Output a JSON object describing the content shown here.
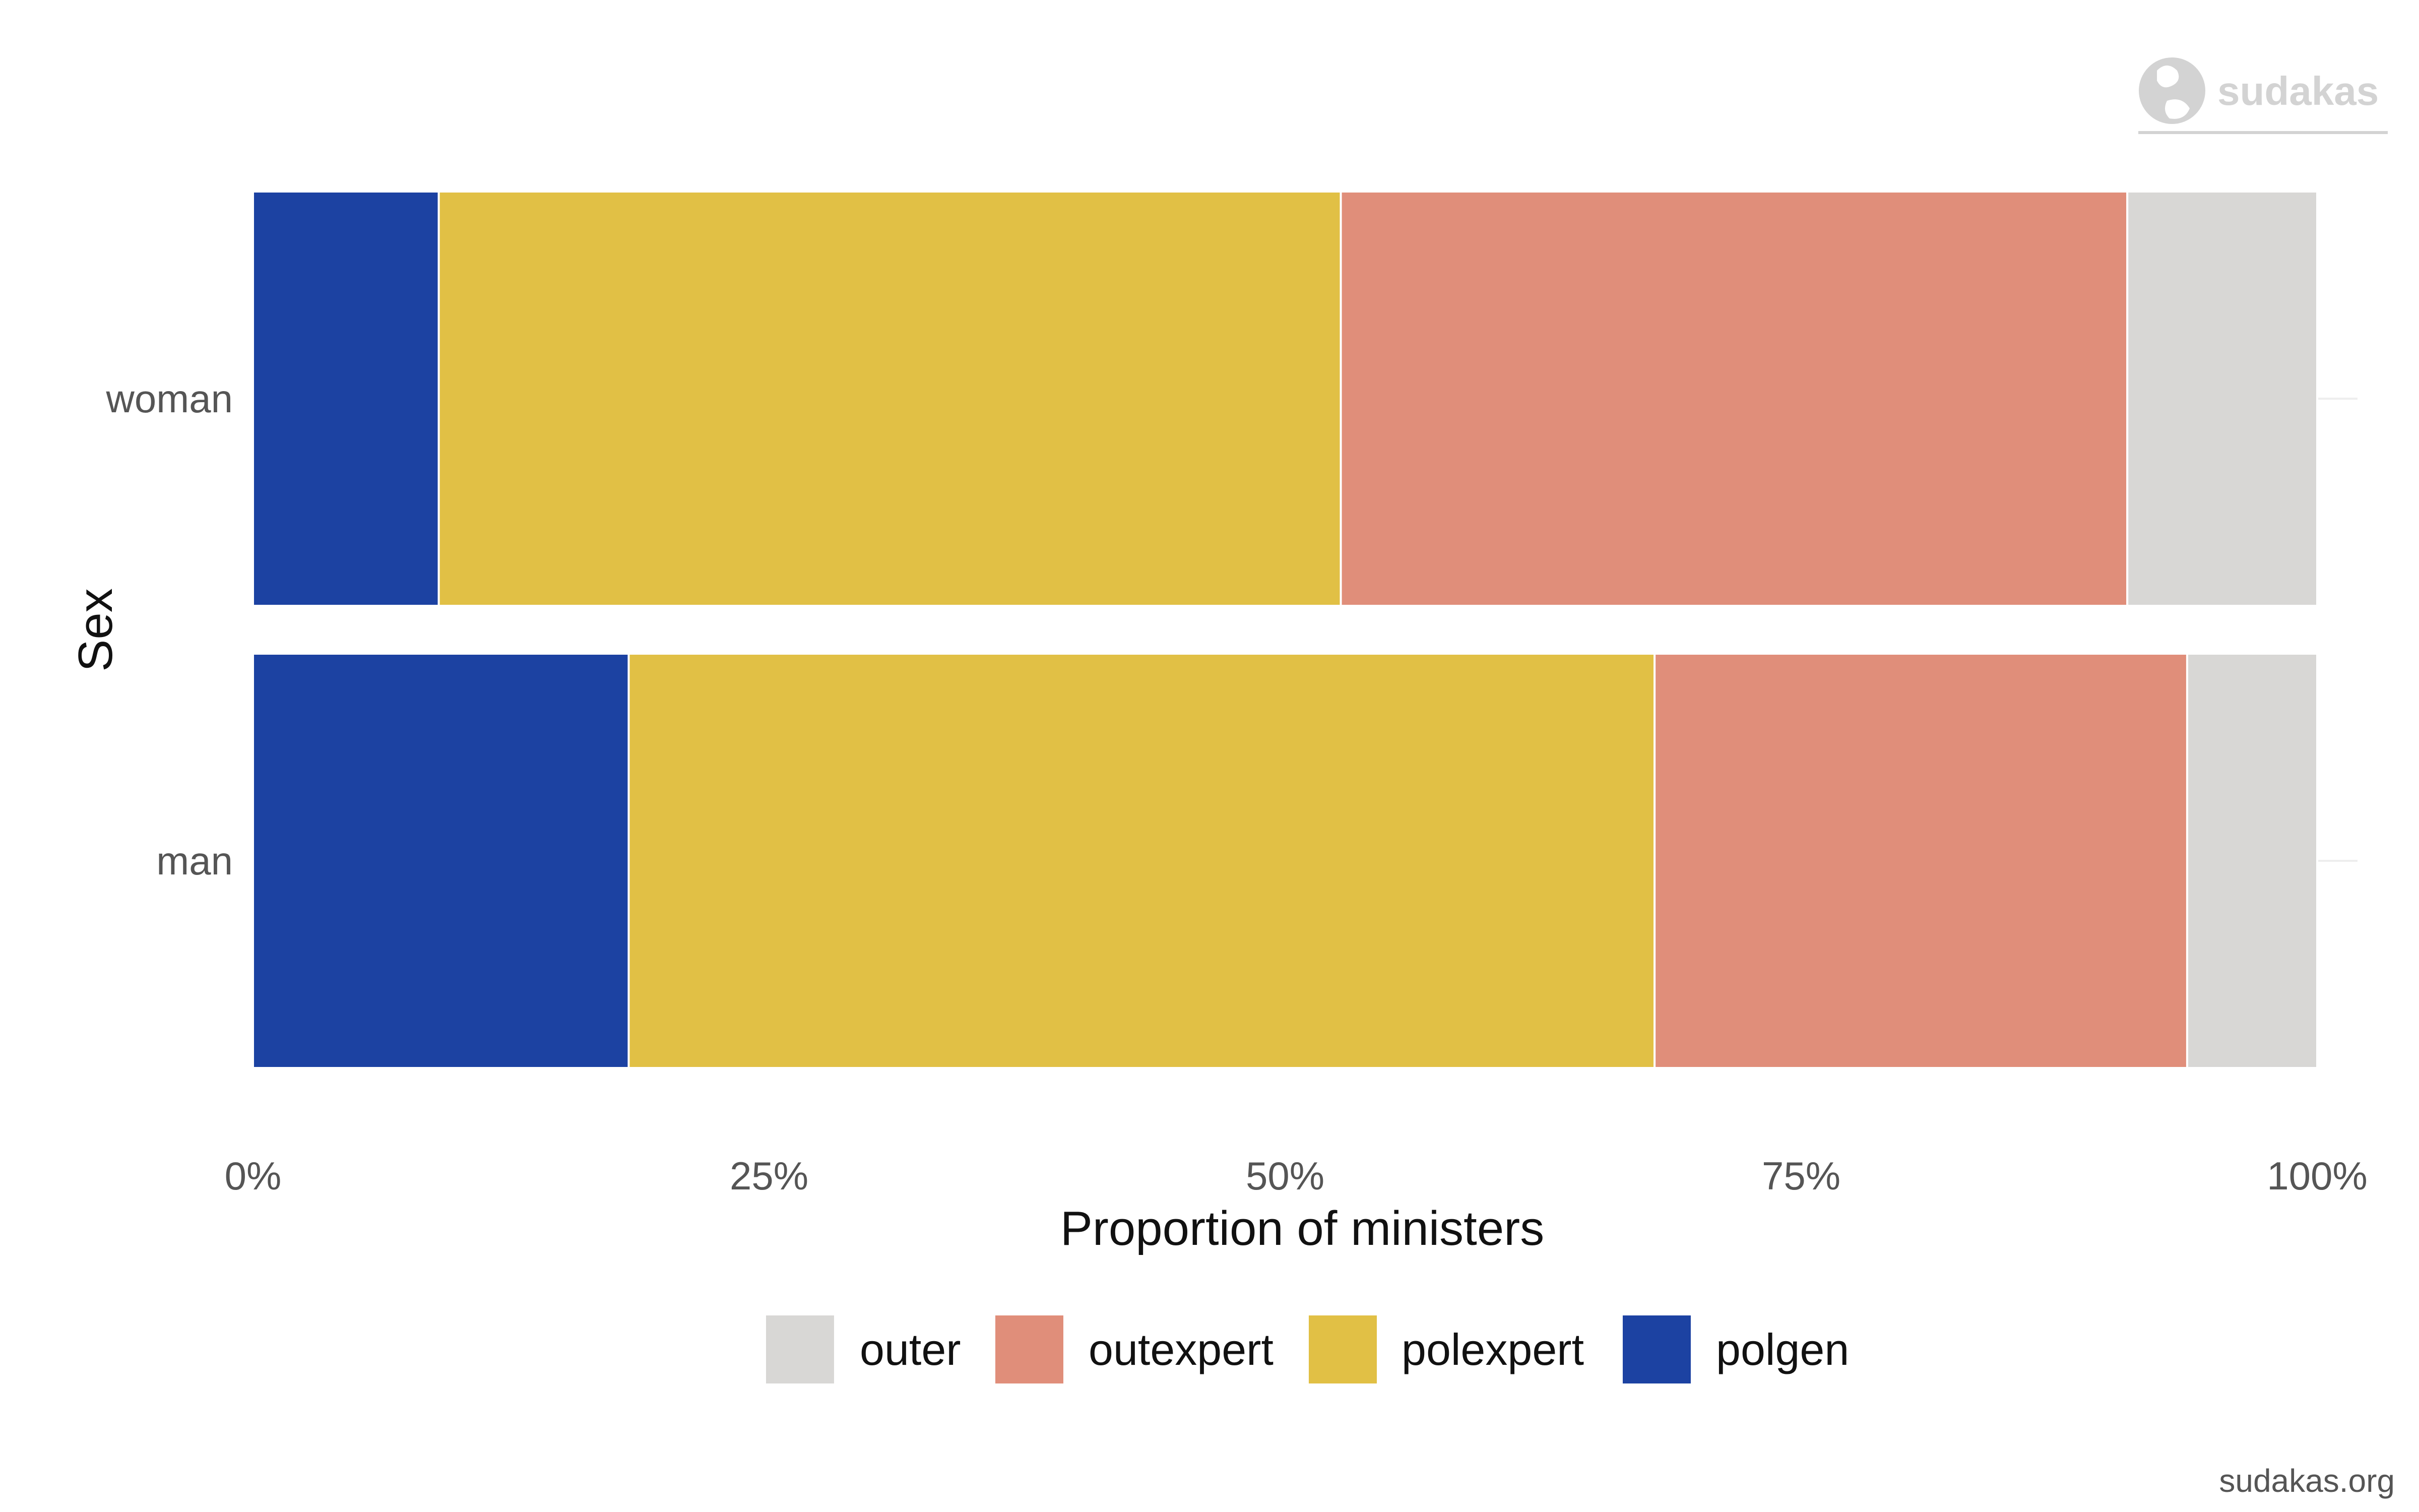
{
  "chart_data": {
    "type": "bar",
    "orientation": "horizontal",
    "stacked": "percent",
    "categories": [
      "woman",
      "man"
    ],
    "series": [
      {
        "name": "polgen",
        "values": [
          9,
          18.2
        ],
        "color": "#1c42a2"
      },
      {
        "name": "polexpert",
        "values": [
          43.7,
          49.7
        ],
        "color": "#e1c045"
      },
      {
        "name": "outexpert",
        "values": [
          38.1,
          25.8
        ],
        "color": "#e08e7a"
      },
      {
        "name": "outer",
        "values": [
          9.2,
          6.3
        ],
        "color": "#d8d7d5"
      }
    ],
    "legend_order": [
      "outer",
      "outexpert",
      "polexpert",
      "polgen"
    ],
    "legend_position": "bottom",
    "x_ticks": [
      "0%",
      "25%",
      "50%",
      "75%",
      "100%"
    ],
    "xlim": [
      0,
      100
    ],
    "xlabel": "Proportion of ministers",
    "ylabel": "Sex",
    "title": "",
    "grid": false
  },
  "branding": {
    "logo_text": "sudakas",
    "logo_icon": "globe-icon",
    "caption": "sudakas.org"
  }
}
